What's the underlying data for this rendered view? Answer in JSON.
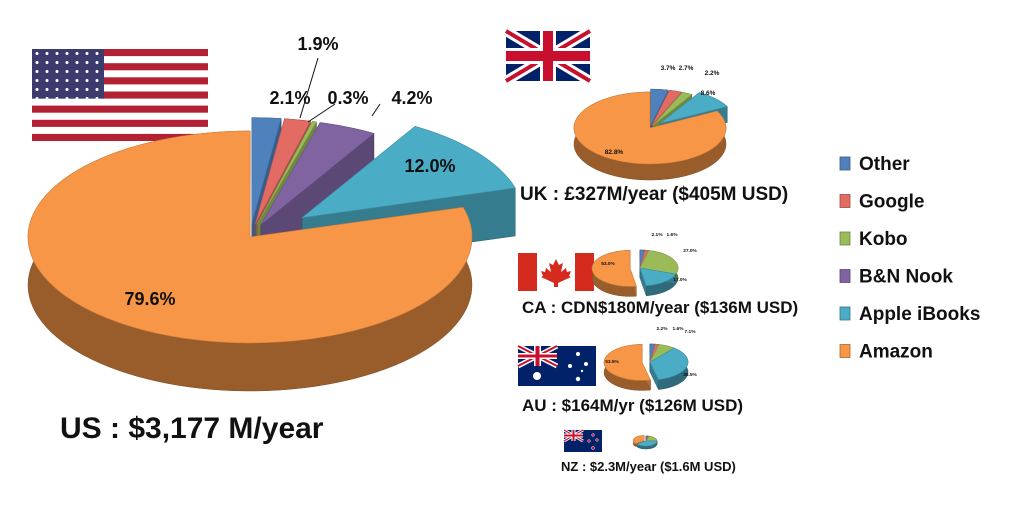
{
  "chart_data": {
    "type": "pie",
    "legend": [
      {
        "name": "Other",
        "color": "#4f81bd"
      },
      {
        "name": "Google",
        "color": "#e26b63"
      },
      {
        "name": "Kobo",
        "color": "#9bbb59"
      },
      {
        "name": "B&N Nook",
        "color": "#8064a2"
      },
      {
        "name": "Apple iBooks",
        "color": "#4bacc6"
      },
      {
        "name": "Amazon",
        "color": "#f79646"
      }
    ],
    "legend_position": "right",
    "charts": [
      {
        "caption": "US : $3,177 M/year",
        "slices": [
          {
            "name": "Other",
            "value": 2.1,
            "label": "2.1%"
          },
          {
            "name": "Google",
            "value": 1.9,
            "label": "1.9%"
          },
          {
            "name": "Kobo",
            "value": 0.3,
            "label": "0.3%"
          },
          {
            "name": "B&N Nook",
            "value": 4.2,
            "label": "4.2%"
          },
          {
            "name": "Apple iBooks",
            "value": 12.0,
            "label": "12.0%"
          },
          {
            "name": "Amazon",
            "value": 79.6,
            "label": "79.6%"
          }
        ]
      },
      {
        "caption": "UK : £327M/year ($405M USD)",
        "slices": [
          {
            "name": "Other",
            "value": 3.7,
            "label": "3.7%"
          },
          {
            "name": "Google",
            "value": 2.7,
            "label": "2.7%"
          },
          {
            "name": "Kobo",
            "value": 2.2,
            "label": "2.2%"
          },
          {
            "name": "B&N Nook",
            "value": 0.0,
            "label": ""
          },
          {
            "name": "Apple iBooks",
            "value": 8.6,
            "label": "8.6%"
          },
          {
            "name": "Amazon",
            "value": 82.8,
            "label": "82.8%"
          }
        ]
      },
      {
        "caption": "CA : CDN$180M/year ($136M USD)",
        "slices": [
          {
            "name": "Other",
            "value": 2.1,
            "label": "2.1%"
          },
          {
            "name": "Google",
            "value": 1.6,
            "label": "1.6%"
          },
          {
            "name": "Kobo",
            "value": 27.0,
            "label": "27.0%"
          },
          {
            "name": "B&N Nook",
            "value": 0.0,
            "label": ""
          },
          {
            "name": "Apple iBooks",
            "value": 17.0,
            "label": "17.0%"
          },
          {
            "name": "Amazon",
            "value": 53.0,
            "label": "53.0%"
          }
        ]
      },
      {
        "caption": "AU : $164M/yr ($126M USD)",
        "slices": [
          {
            "name": "Other",
            "value": 2.2,
            "label": "2.2%"
          },
          {
            "name": "Google",
            "value": 1.6,
            "label": "1.6%"
          },
          {
            "name": "Kobo",
            "value": 7.1,
            "label": "7.1%"
          },
          {
            "name": "B&N Nook",
            "value": 0.0,
            "label": ""
          },
          {
            "name": "Apple iBooks",
            "value": 35.5,
            "label": "35.5%"
          },
          {
            "name": "Amazon",
            "value": 53.5,
            "label": "53.5%"
          }
        ]
      },
      {
        "caption": "NZ : $2.3M/year ($1.6M USD)",
        "slices": [
          {
            "name": "Other",
            "value": 3.0,
            "label": ""
          },
          {
            "name": "Google",
            "value": 2.0,
            "label": ""
          },
          {
            "name": "Kobo",
            "value": 20.0,
            "label": ""
          },
          {
            "name": "B&N Nook",
            "value": 0.0,
            "label": ""
          },
          {
            "name": "Apple iBooks",
            "value": 40.0,
            "label": ""
          },
          {
            "name": "Amazon",
            "value": 35.0,
            "label": ""
          }
        ]
      }
    ]
  },
  "flags": [
    "us-flag-icon",
    "uk-flag-icon",
    "canada-flag-icon",
    "australia-flag-icon",
    "new-zealand-flag-icon"
  ]
}
